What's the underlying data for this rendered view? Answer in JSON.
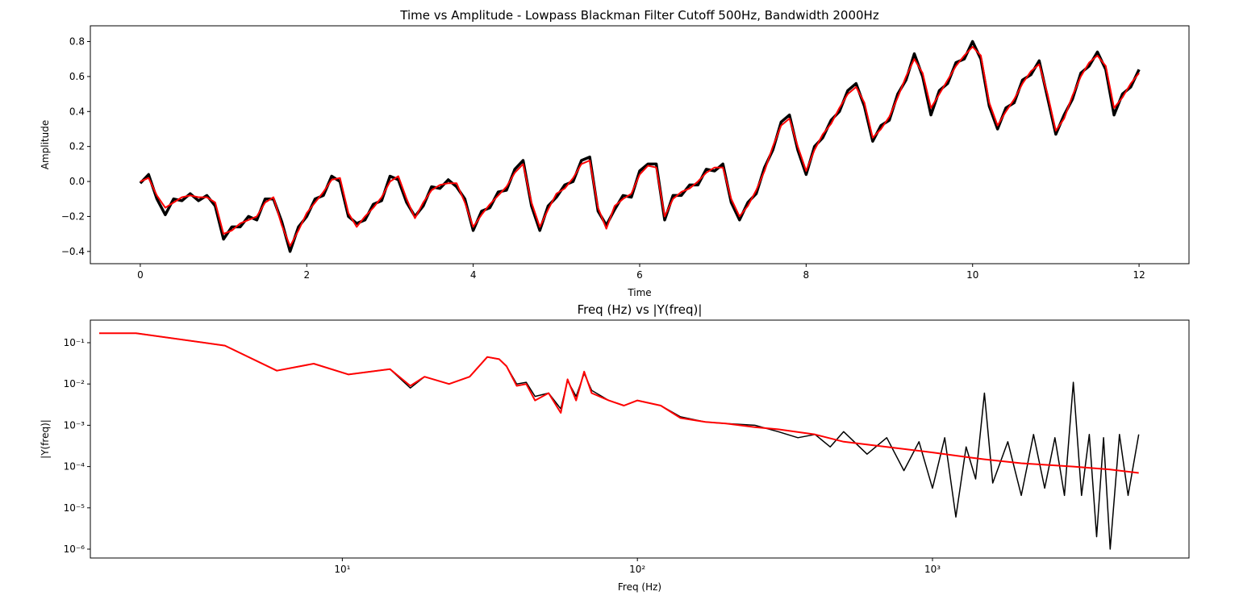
{
  "chart_data": [
    {
      "type": "line",
      "title": "Time vs Amplitude - Lowpass Blackman Filter Cutoff 500Hz, Bandwidth 2000Hz",
      "x_label": "Time",
      "y_label": "Amplitude",
      "xscale": "linear",
      "yscale": "linear",
      "xlim": [
        -0.6,
        12.6
      ],
      "ylim": [
        -0.47,
        0.89
      ],
      "xticks": [
        0,
        2,
        4,
        6,
        8,
        10,
        12
      ],
      "yticks": [
        {
          "value": -0.4,
          "label": "−0.4"
        },
        {
          "value": -0.2,
          "label": "−0.2"
        },
        {
          "value": 0,
          "label": "0.0"
        },
        0.2,
        0.4,
        0.6,
        0.8
      ],
      "x": [
        0,
        0.1,
        0.2,
        0.3,
        0.4,
        0.5,
        0.6,
        0.7,
        0.8,
        0.9,
        1,
        1.1,
        1.2,
        1.3,
        1.4,
        1.5,
        1.6,
        1.7,
        1.8,
        1.9,
        2,
        2.1,
        2.2,
        2.3,
        2.4,
        2.5,
        2.6,
        2.7,
        2.8,
        2.9,
        3,
        3.1,
        3.2,
        3.3,
        3.4,
        3.5,
        3.6,
        3.7,
        3.8,
        3.9,
        4,
        4.1,
        4.2,
        4.3,
        4.4,
        4.5,
        4.6,
        4.7,
        4.8,
        4.9,
        5,
        5.1,
        5.2,
        5.3,
        5.4,
        5.5,
        5.6,
        5.7,
        5.8,
        5.9,
        6,
        6.1,
        6.2,
        6.3,
        6.4,
        6.5,
        6.6,
        6.7,
        6.8,
        6.9,
        7,
        7.1,
        7.2,
        7.3,
        7.4,
        7.5,
        7.6,
        7.7,
        7.8,
        7.9,
        8,
        8.1,
        8.2,
        8.3,
        8.4,
        8.5,
        8.6,
        8.7,
        8.8,
        8.9,
        9,
        9.1,
        9.2,
        9.3,
        9.4,
        9.5,
        9.6,
        9.7,
        9.8,
        9.9,
        10,
        10.1,
        10.2,
        10.3,
        10.4,
        10.5,
        10.6,
        10.7,
        10.8,
        10.9,
        11,
        11.1,
        11.2,
        11.3,
        11.4,
        11.5,
        11.6,
        11.7,
        11.8,
        11.9,
        12
      ],
      "series": [
        {
          "color": "#000000",
          "width": 3.5,
          "values": [
            -0.01,
            0.04,
            -0.1,
            -0.19,
            -0.1,
            -0.11,
            -0.07,
            -0.11,
            -0.08,
            -0.14,
            -0.33,
            -0.26,
            -0.26,
            -0.2,
            -0.22,
            -0.1,
            -0.1,
            -0.23,
            -0.4,
            -0.26,
            -0.2,
            -0.1,
            -0.08,
            0.03,
            0.0,
            -0.2,
            -0.24,
            -0.22,
            -0.13,
            -0.11,
            0.03,
            0.01,
            -0.12,
            -0.2,
            -0.14,
            -0.03,
            -0.04,
            0.01,
            -0.03,
            -0.1,
            -0.28,
            -0.17,
            -0.15,
            -0.06,
            -0.05,
            0.07,
            0.12,
            -0.14,
            -0.28,
            -0.14,
            -0.09,
            -0.02,
            0.0,
            0.12,
            0.14,
            -0.17,
            -0.25,
            -0.16,
            -0.08,
            -0.09,
            0.06,
            0.1,
            0.1,
            -0.22,
            -0.08,
            -0.08,
            -0.02,
            -0.02,
            0.07,
            0.06,
            0.1,
            -0.12,
            -0.22,
            -0.12,
            -0.07,
            0.08,
            0.18,
            0.34,
            0.38,
            0.18,
            0.04,
            0.2,
            0.25,
            0.35,
            0.4,
            0.52,
            0.56,
            0.43,
            0.23,
            0.32,
            0.35,
            0.5,
            0.58,
            0.73,
            0.6,
            0.38,
            0.52,
            0.56,
            0.68,
            0.7,
            0.8,
            0.7,
            0.43,
            0.3,
            0.42,
            0.45,
            0.58,
            0.61,
            0.69,
            0.48,
            0.27,
            0.38,
            0.47,
            0.62,
            0.66,
            0.74,
            0.64,
            0.38,
            0.5,
            0.54,
            0.64
          ]
        },
        {
          "color": "#ff0000",
          "width": 2,
          "values": [
            0.0,
            0.02,
            -0.08,
            -0.15,
            -0.12,
            -0.09,
            -0.08,
            -0.09,
            -0.09,
            -0.12,
            -0.3,
            -0.28,
            -0.24,
            -0.22,
            -0.2,
            -0.12,
            -0.09,
            -0.25,
            -0.37,
            -0.28,
            -0.18,
            -0.12,
            -0.06,
            0.01,
            0.02,
            -0.18,
            -0.26,
            -0.2,
            -0.15,
            -0.09,
            0.0,
            0.03,
            -0.1,
            -0.21,
            -0.12,
            -0.05,
            -0.02,
            -0.01,
            -0.01,
            -0.12,
            -0.26,
            -0.19,
            -0.13,
            -0.08,
            -0.03,
            0.05,
            0.1,
            -0.12,
            -0.26,
            -0.16,
            -0.07,
            -0.04,
            0.02,
            0.1,
            0.12,
            -0.15,
            -0.27,
            -0.14,
            -0.1,
            -0.07,
            0.04,
            0.09,
            0.08,
            -0.2,
            -0.1,
            -0.06,
            -0.04,
            0.0,
            0.05,
            0.08,
            0.08,
            -0.1,
            -0.2,
            -0.14,
            -0.05,
            0.06,
            0.2,
            0.32,
            0.36,
            0.2,
            0.06,
            0.18,
            0.27,
            0.33,
            0.42,
            0.5,
            0.54,
            0.45,
            0.25,
            0.3,
            0.37,
            0.48,
            0.6,
            0.7,
            0.62,
            0.42,
            0.5,
            0.58,
            0.66,
            0.72,
            0.77,
            0.72,
            0.45,
            0.32,
            0.4,
            0.47,
            0.56,
            0.63,
            0.67,
            0.5,
            0.29,
            0.36,
            0.49,
            0.6,
            0.68,
            0.72,
            0.66,
            0.42,
            0.48,
            0.56,
            0.62
          ]
        }
      ]
    },
    {
      "type": "line",
      "title": "Freq (Hz) vs |Y(freq)|",
      "x_label": "Freq (Hz)",
      "y_label": "|Y(freq)|",
      "xscale": "log",
      "yscale": "log",
      "xlim": [
        1.4,
        7400
      ],
      "ylim": [
        6.1e-07,
        0.352
      ],
      "xticks": [
        {
          "value": 10,
          "label": "10¹"
        },
        {
          "value": 100,
          "label": "10²"
        },
        {
          "value": 1000,
          "label": "10³"
        }
      ],
      "yticks": [
        {
          "value": 1e-06,
          "label": "10⁻⁶"
        },
        {
          "value": 1e-05,
          "label": "10⁻⁵"
        },
        {
          "value": 0.0001,
          "label": "10⁻⁴"
        },
        {
          "value": 0.001,
          "label": "10⁻³"
        },
        {
          "value": 0.01,
          "label": "10⁻²"
        },
        {
          "value": 0.1,
          "label": "10⁻¹"
        }
      ],
      "series": [
        {
          "color": "#000000",
          "width": 1.5,
          "x": [
            1.5,
            2,
            4,
            6,
            8,
            10.5,
            14.5,
            17,
            19,
            23,
            27,
            31,
            34,
            36,
            39,
            42,
            45,
            50,
            55,
            58,
            62,
            66,
            70,
            80,
            90,
            100,
            120,
            140,
            170,
            200,
            250,
            300,
            350,
            400,
            450,
            500,
            600,
            700,
            800,
            900,
            1000,
            1100,
            1200,
            1300,
            1400,
            1500,
            1600,
            1800,
            2000,
            2200,
            2400,
            2600,
            2800,
            3000,
            3200,
            3400,
            3600,
            3800,
            4000,
            4300,
            4600,
            5000
          ],
          "values": [
            0.17,
            0.17,
            0.085,
            0.021,
            0.031,
            0.017,
            0.023,
            0.008,
            0.015,
            0.01,
            0.015,
            0.045,
            0.04,
            0.027,
            0.01,
            0.011,
            0.005,
            0.006,
            0.0025,
            0.012,
            0.005,
            0.018,
            0.007,
            0.004,
            0.003,
            0.004,
            0.003,
            0.0016,
            0.0012,
            0.0011,
            0.001,
            0.0007,
            0.0005,
            0.0006,
            0.0003,
            0.0007,
            0.0002,
            0.0005,
            8e-05,
            0.0004,
            3e-05,
            0.0005,
            6e-06,
            0.0003,
            5e-05,
            0.006,
            4e-05,
            0.0004,
            2e-05,
            0.0006,
            3e-05,
            0.0005,
            2e-05,
            0.011,
            2e-05,
            0.0006,
            2e-06,
            0.0005,
            1e-06,
            0.0006,
            2e-05,
            0.0006
          ]
        },
        {
          "color": "#ff0000",
          "width": 2,
          "x": [
            1.5,
            2,
            4,
            6,
            8,
            10.5,
            14.5,
            17,
            19,
            23,
            27,
            31,
            34,
            36,
            39,
            42,
            45,
            50,
            55,
            58,
            62,
            66,
            70,
            80,
            90,
            100,
            120,
            140,
            170,
            200,
            250,
            300,
            400,
            500,
            700,
            1000,
            1300,
            1500,
            2000,
            3000,
            4000,
            5000
          ],
          "values": [
            0.17,
            0.17,
            0.085,
            0.021,
            0.031,
            0.017,
            0.023,
            0.009,
            0.015,
            0.01,
            0.015,
            0.045,
            0.04,
            0.027,
            0.009,
            0.01,
            0.004,
            0.006,
            0.002,
            0.013,
            0.004,
            0.02,
            0.006,
            0.004,
            0.003,
            0.004,
            0.003,
            0.0015,
            0.0012,
            0.0011,
            0.0009,
            0.0008,
            0.0006,
            0.0004,
            0.0003,
            0.00022,
            0.00017,
            0.00015,
            0.00012,
            0.0001,
            8.5e-05,
            7e-05
          ]
        }
      ]
    }
  ]
}
